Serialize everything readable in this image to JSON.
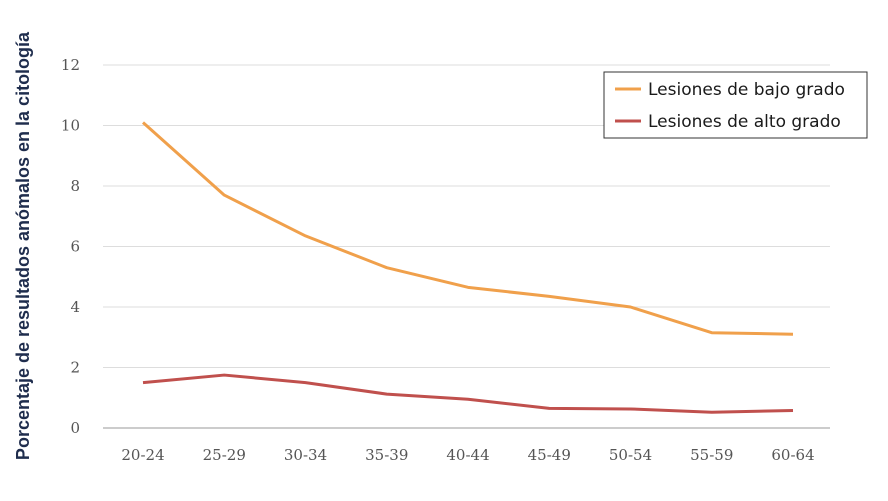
{
  "chart_data": {
    "type": "line",
    "title": "",
    "xlabel": "",
    "ylabel": "Porcentaje de resultados anómalos en la citología",
    "categories": [
      "20-24",
      "25-29",
      "30-34",
      "35-39",
      "40-44",
      "45-49",
      "50-54",
      "55-59",
      "60-64"
    ],
    "ylim": [
      0,
      12
    ],
    "yticks": [
      0,
      2,
      4,
      6,
      8,
      10,
      12
    ],
    "grid": true,
    "legend_position": "top-right",
    "series": [
      {
        "name": "Lesiones de bajo grado",
        "color": "#f0a04b",
        "values": [
          10.1,
          7.7,
          6.35,
          5.3,
          4.65,
          4.35,
          4.0,
          3.15,
          3.1
        ]
      },
      {
        "name": "Lesiones de alto grado",
        "color": "#c0504d",
        "values": [
          1.5,
          1.75,
          1.5,
          1.12,
          0.95,
          0.65,
          0.63,
          0.52,
          0.58
        ]
      }
    ]
  }
}
